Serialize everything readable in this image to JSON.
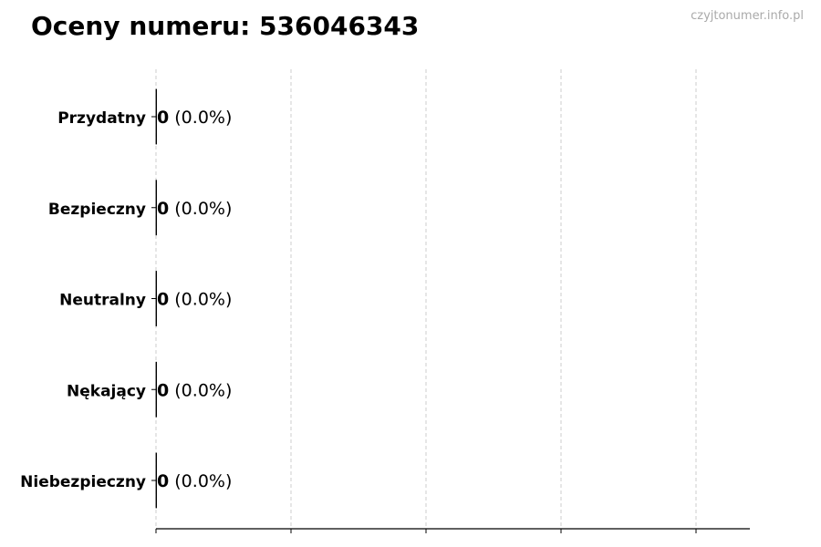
{
  "title": "Oceny numeru: 536046343",
  "watermark": "czyjtonumer.info.pl",
  "chart_data": {
    "type": "bar",
    "orientation": "horizontal",
    "title": "Oceny numeru: 536046343",
    "categories": [
      "Przydatny",
      "Bezpieczny",
      "Neutralny",
      "Nękający",
      "Niebezpieczny"
    ],
    "values": [
      0,
      0,
      0,
      0,
      0
    ],
    "data_labels": [
      "0 (0.0%)",
      "0 (0.0%)",
      "0 (0.0%)",
      "0 (0.0%)",
      "0 (0.0%)"
    ],
    "counts": [
      "0",
      "0",
      "0",
      "0",
      "0"
    ],
    "percents": [
      "(0.0%)",
      "(0.0%)",
      "(0.0%)",
      "(0.0%)",
      "(0.0%)"
    ],
    "xlabel": "",
    "ylabel": "",
    "xticks_count": 5,
    "x_tick_labels_shown": false,
    "grid": "vertical dashed",
    "colors": {
      "bar_edge": "#000000",
      "grid": "#cccccc",
      "watermark": "#aaaaaa"
    }
  }
}
